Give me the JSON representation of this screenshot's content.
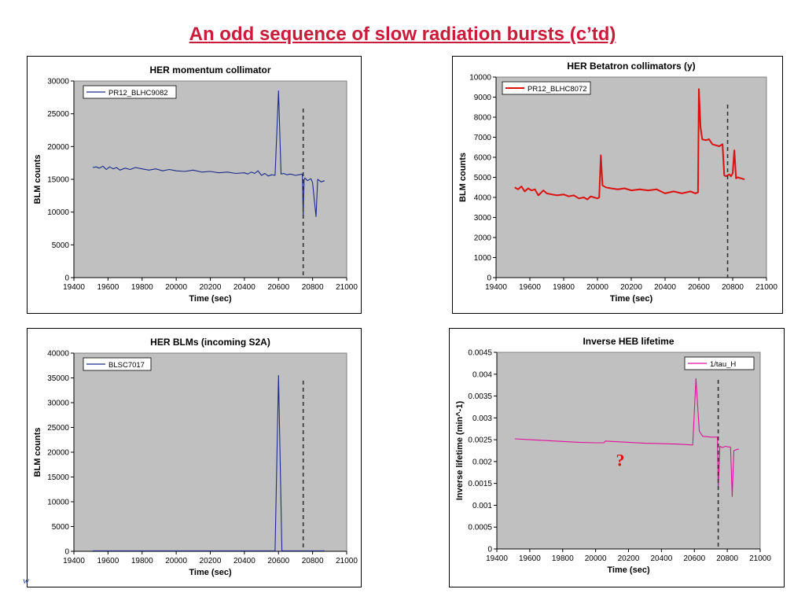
{
  "slide": {
    "title": "An odd sequence of slow radiation bursts (c’td)",
    "footer_mark": "w"
  },
  "chart_data": [
    {
      "type": "line",
      "title": "HER momentum collimator",
      "xlabel": "Time (sec)",
      "ylabel": "BLM counts",
      "xlim": [
        19400,
        21000
      ],
      "ylim": [
        0,
        30000
      ],
      "xticks": [
        "19400",
        "19600",
        "19800",
        "20000",
        "20200",
        "20400",
        "20600",
        "20800",
        "21000"
      ],
      "yticks": [
        "0",
        "5000",
        "10000",
        "15000",
        "20000",
        "25000",
        "30000"
      ],
      "legend_position": "top-left",
      "marker_line_x": 20745,
      "series": [
        {
          "name": "PR12_BLHC9082",
          "color": "#1c2a8c",
          "x": [
            19510,
            19530,
            19550,
            19570,
            19590,
            19610,
            19630,
            19650,
            19670,
            19700,
            19730,
            19760,
            19800,
            19840,
            19880,
            19920,
            19960,
            20000,
            20050,
            20100,
            20150,
            20200,
            20250,
            20300,
            20350,
            20400,
            20420,
            20440,
            20460,
            20480,
            20500,
            20520,
            20540,
            20560,
            20580,
            20600,
            20615,
            20630,
            20650,
            20670,
            20700,
            20720,
            20740,
            20745,
            20750,
            20755,
            20770,
            20790,
            20800,
            20820,
            20830,
            20850,
            20870
          ],
          "values": [
            16800,
            16900,
            16700,
            17000,
            16500,
            16900,
            16600,
            16800,
            16400,
            16700,
            16500,
            16800,
            16600,
            16400,
            16600,
            16300,
            16500,
            16300,
            16200,
            16400,
            16100,
            16200,
            16000,
            16100,
            15900,
            16000,
            15800,
            16100,
            15900,
            16300,
            15600,
            15900,
            15500,
            15700,
            15600,
            28500,
            15800,
            15900,
            15700,
            15800,
            15600,
            15700,
            15800,
            9200,
            14900,
            15200,
            14800,
            15100,
            14500,
            9300,
            15000,
            14600,
            14800
          ]
        }
      ]
    },
    {
      "type": "line",
      "title": "HER Betatron collimators (y)",
      "xlabel": "Time (sec)",
      "ylabel": "BLM counts",
      "xlim": [
        19400,
        21000
      ],
      "ylim": [
        0,
        10000
      ],
      "xticks": [
        "19400",
        "19600",
        "19800",
        "20000",
        "20200",
        "20400",
        "20600",
        "20800",
        "21000"
      ],
      "yticks": [
        "0",
        "1000",
        "2000",
        "3000",
        "4000",
        "5000",
        "6000",
        "7000",
        "8000",
        "9000",
        "10000"
      ],
      "legend_position": "top-left",
      "marker_line_x": 20770,
      "series": [
        {
          "name": "PR12_BLHC8072",
          "color": "#dd1010",
          "x": [
            19510,
            19530,
            19550,
            19570,
            19590,
            19610,
            19630,
            19650,
            19680,
            19700,
            19730,
            19760,
            19800,
            19830,
            19860,
            19890,
            19920,
            19940,
            19960,
            19980,
            20000,
            20010,
            20020,
            20030,
            20050,
            20080,
            20120,
            20160,
            20200,
            20250,
            20300,
            20350,
            20400,
            20450,
            20500,
            20550,
            20580,
            20595,
            20600,
            20610,
            20620,
            20640,
            20660,
            20680,
            20700,
            20720,
            20740,
            20750,
            20760,
            20770,
            20780,
            20790,
            20800,
            20810,
            20820,
            20830,
            20850,
            20870
          ],
          "values": [
            4500,
            4400,
            4550,
            4300,
            4450,
            4350,
            4400,
            4100,
            4350,
            4200,
            4150,
            4100,
            4150,
            4050,
            4100,
            3950,
            4000,
            3900,
            4050,
            4000,
            3950,
            4000,
            6100,
            4600,
            4500,
            4450,
            4400,
            4450,
            4350,
            4400,
            4350,
            4400,
            4200,
            4300,
            4200,
            4300,
            4200,
            4250,
            9400,
            7500,
            6900,
            6850,
            6900,
            6650,
            6600,
            6550,
            6650,
            5100,
            5050,
            5100,
            5150,
            5050,
            5200,
            6350,
            4950,
            5000,
            4950,
            4900
          ]
        }
      ]
    },
    {
      "type": "line",
      "title": "HER BLMs (incoming S2A)",
      "xlabel": "Time (sec)",
      "ylabel": "BLM counts",
      "xlim": [
        19400,
        21000
      ],
      "ylim": [
        0,
        40000
      ],
      "xticks": [
        "19400",
        "19600",
        "19800",
        "20000",
        "20200",
        "20400",
        "20600",
        "20800",
        "21000"
      ],
      "yticks": [
        "0",
        "5000",
        "10000",
        "15000",
        "20000",
        "25000",
        "30000",
        "35000",
        "40000"
      ],
      "legend_position": "top-left",
      "marker_line_x": 20745,
      "series": [
        {
          "name": "BLSC7017",
          "color": "#1c2a8c",
          "x": [
            19510,
            19700,
            19900,
            20100,
            20300,
            20500,
            20580,
            20600,
            20620,
            20640,
            20700,
            20870
          ],
          "values": [
            100,
            100,
            100,
            100,
            100,
            100,
            100,
            35500,
            100,
            100,
            100,
            100
          ]
        }
      ]
    },
    {
      "type": "line",
      "title": "Inverse HEB lifetime",
      "xlabel": "Time (sec)",
      "ylabel": "Inverse lifetime (min^-1)",
      "xlim": [
        19400,
        21000
      ],
      "ylim": [
        0,
        0.0045
      ],
      "xticks": [
        "19400",
        "19600",
        "19800",
        "20000",
        "20200",
        "20400",
        "20600",
        "20800",
        "21000"
      ],
      "yticks": [
        "0",
        "0.0005",
        "0.001",
        "0.0015",
        "0.002",
        "0.0025",
        "0.003",
        "0.0035",
        "0.004",
        "0.0045"
      ],
      "legend_position": "top-right",
      "marker_line_x": 20745,
      "annotation": "?",
      "series": [
        {
          "name": "1/tau_H",
          "color": "#e0109a",
          "x": [
            19510,
            19600,
            19700,
            19800,
            19900,
            20000,
            20050,
            20060,
            20100,
            20200,
            20300,
            20400,
            20500,
            20590,
            20610,
            20630,
            20650,
            20700,
            20740,
            20745,
            20755,
            20770,
            20790,
            20800,
            20820,
            20830,
            20840,
            20860,
            20870
          ],
          "values": [
            0.00252,
            0.0025,
            0.00248,
            0.00246,
            0.00244,
            0.00243,
            0.00243,
            0.00247,
            0.00246,
            0.00244,
            0.00242,
            0.00241,
            0.0024,
            0.00238,
            0.0039,
            0.0027,
            0.00258,
            0.00256,
            0.00256,
            0.00135,
            0.00235,
            0.00232,
            0.00235,
            0.00234,
            0.00233,
            0.0012,
            0.00225,
            0.00228,
            0.00228
          ]
        }
      ]
    }
  ]
}
